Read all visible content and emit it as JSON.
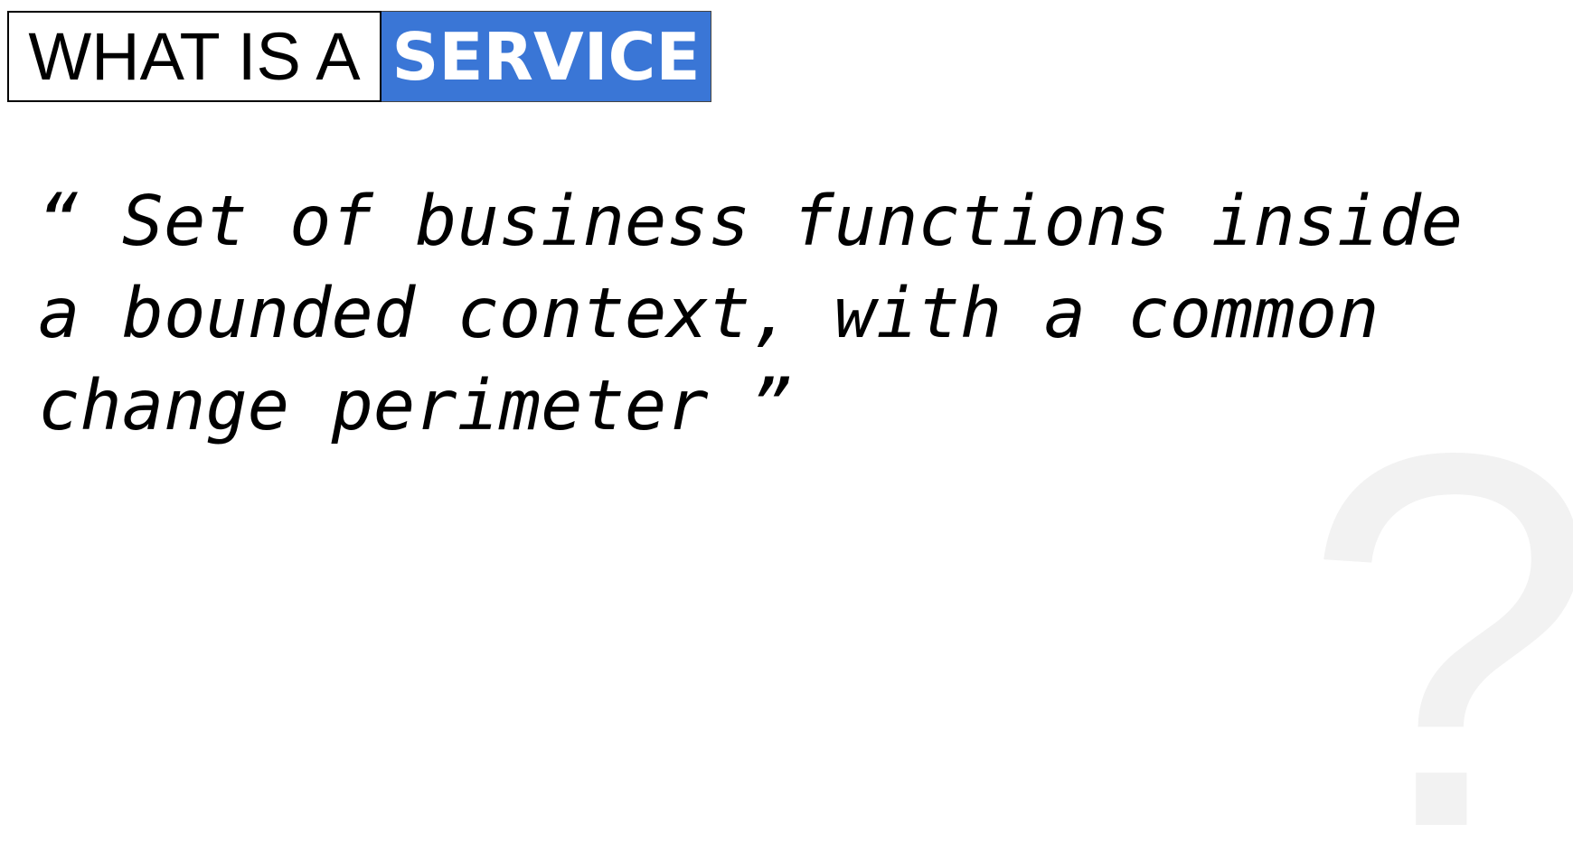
{
  "header": {
    "prefix": "WHAT IS A",
    "highlight": "SERVICE"
  },
  "quote": {
    "text": "“ Set of business functions inside a bounded context, with a common change perimeter ”"
  },
  "decoration": {
    "question_mark": "?"
  },
  "colors": {
    "highlight_bg": "#3a76d6",
    "text": "#000000",
    "question_mark": "#f2f2f2"
  }
}
